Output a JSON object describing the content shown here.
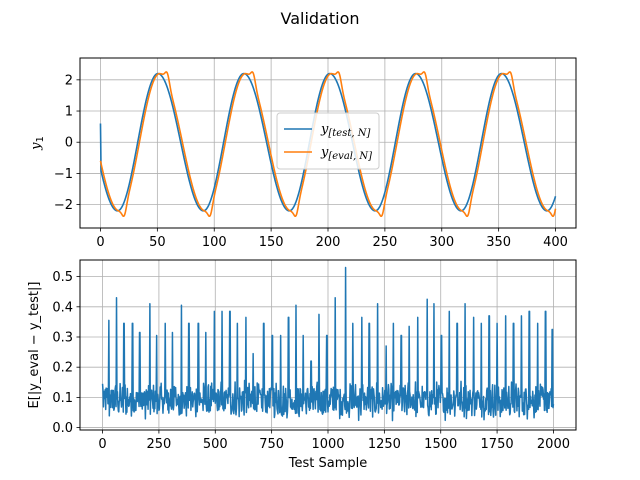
{
  "figure": {
    "suptitle": "Validation"
  },
  "chart_data": [
    {
      "type": "line",
      "ylabel_main": "y",
      "ylabel_sub": "1",
      "xlim": [
        -18,
        418
      ],
      "ylim": [
        -2.75,
        2.7
      ],
      "xticks": [
        0,
        50,
        100,
        150,
        200,
        250,
        300,
        350,
        400
      ],
      "yticks": [
        -2,
        -1,
        0,
        1,
        2
      ],
      "grid": true,
      "legend": "center",
      "signal": {
        "period": 75.5,
        "amplitude": 2.2,
        "x_start": 0,
        "x_end": 400,
        "x_peaks": [
          50,
          125,
          200,
          275,
          350
        ],
        "x_troughs": [
          18,
          88,
          165,
          240,
          315,
          390
        ]
      },
      "series": [
        {
          "name_main": "y",
          "name_sub": "[test, N]",
          "color": "#1f77b4"
        },
        {
          "name_main": "y",
          "name_sub": "[eval, N]",
          "color": "#ff7f0e"
        }
      ]
    },
    {
      "type": "line",
      "xlabel": "Test Sample",
      "ylabel": "E[|y_eval − y_test|]",
      "xlim": [
        -100,
        2100
      ],
      "ylim": [
        -0.008,
        0.555
      ],
      "xticks": [
        0,
        250,
        500,
        750,
        1000,
        1250,
        1500,
        1750,
        2000
      ],
      "yticks": [
        0.0,
        0.1,
        0.2,
        0.3,
        0.4,
        0.5
      ],
      "grid": true,
      "series": [
        {
          "color": "#1f77b4",
          "x_start": 0,
          "x_end": 2000,
          "baseline_range": [
            0.02,
            0.16
          ],
          "spikes": [
            [
              0,
              0.145
            ],
            [
              28,
              0.355
            ],
            [
              62,
              0.43
            ],
            [
              95,
              0.345
            ],
            [
              133,
              0.345
            ],
            [
              165,
              0.315
            ],
            [
              210,
              0.41
            ],
            [
              240,
              0.305
            ],
            [
              278,
              0.345
            ],
            [
              310,
              0.315
            ],
            [
              350,
              0.405
            ],
            [
              383,
              0.345
            ],
            [
              425,
              0.345
            ],
            [
              458,
              0.315
            ],
            [
              496,
              0.385
            ],
            [
              530,
              0.385
            ],
            [
              565,
              0.385
            ],
            [
              598,
              0.345
            ],
            [
              636,
              0.365
            ],
            [
              668,
              0.245
            ],
            [
              715,
              0.345
            ],
            [
              753,
              0.305
            ],
            [
              790,
              0.305
            ],
            [
              825,
              0.365
            ],
            [
              858,
              0.405
            ],
            [
              890,
              0.305
            ],
            [
              925,
              0.22
            ],
            [
              960,
              0.375
            ],
            [
              995,
              0.305
            ],
            [
              1032,
              0.43
            ],
            [
              1078,
              0.53
            ],
            [
              1110,
              0.345
            ],
            [
              1150,
              0.365
            ],
            [
              1183,
              0.345
            ],
            [
              1220,
              0.41
            ],
            [
              1258,
              0.27
            ],
            [
              1290,
              0.345
            ],
            [
              1325,
              0.305
            ],
            [
              1360,
              0.335
            ],
            [
              1398,
              0.365
            ],
            [
              1440,
              0.425
            ],
            [
              1470,
              0.41
            ],
            [
              1503,
              0.305
            ],
            [
              1538,
              0.385
            ],
            [
              1573,
              0.345
            ],
            [
              1608,
              0.41
            ],
            [
              1646,
              0.365
            ],
            [
              1680,
              0.345
            ],
            [
              1715,
              0.37
            ],
            [
              1750,
              0.345
            ],
            [
              1788,
              0.37
            ],
            [
              1823,
              0.345
            ],
            [
              1858,
              0.37
            ],
            [
              1893,
              0.385
            ],
            [
              1930,
              0.345
            ],
            [
              1965,
              0.385
            ],
            [
              1995,
              0.325
            ]
          ]
        }
      ]
    }
  ]
}
